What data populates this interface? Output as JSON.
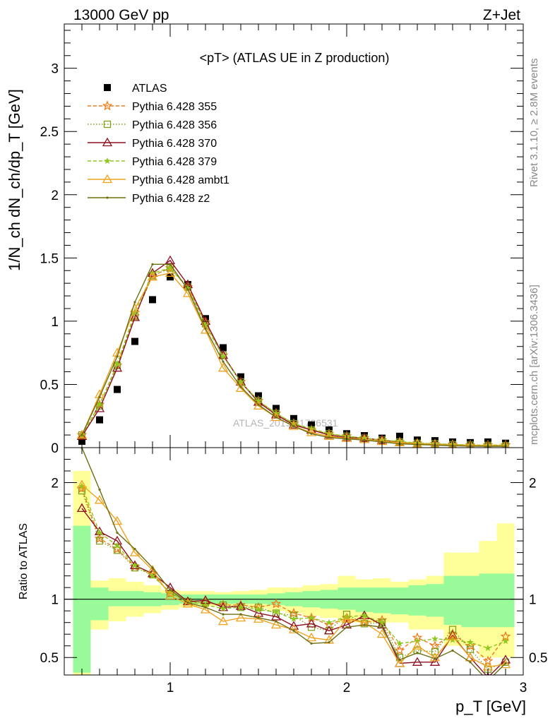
{
  "header": {
    "left": "13000 GeV pp",
    "right": "Z+Jet",
    "plot_title": "<pT> (ATLAS UE in Z production)",
    "side_top": "Rivet 3.1.10, ≥ 2.8M events",
    "side_bottom": "mcplots.cern.ch [arXiv:1306.3436]",
    "watermark": "ATLAS_2019_I1736531"
  },
  "colors": {
    "ATLAS": "#000000",
    "p355": "#f07c1c",
    "p356": "#7ea01c",
    "p370": "#8e1021",
    "p379": "#8ec71d",
    "ambt1": "#efa21c",
    "z2": "#6e6e12",
    "band_inner": "#99fa99",
    "band_outer": "#ffff99"
  },
  "chart_data": [
    {
      "type": "scatter",
      "name": "main",
      "ylabel": "1/N_ch dN_ch/dp_T [GeV]",
      "xlim": [
        0.4,
        3.0
      ],
      "ylim": [
        0,
        3.35
      ],
      "yticks": [
        0,
        0.5,
        1,
        1.5,
        2,
        2.5,
        3
      ],
      "ytick_labels": [
        "0",
        "0.5",
        "1",
        "1.5",
        "2",
        "2.5",
        "3"
      ],
      "legend_position": "top-left",
      "x": [
        0.5,
        0.6,
        0.7,
        0.8,
        0.9,
        1.0,
        1.1,
        1.2,
        1.3,
        1.4,
        1.5,
        1.6,
        1.7,
        1.8,
        1.9,
        2.0,
        2.1,
        2.2,
        2.3,
        2.4,
        2.5,
        2.6,
        2.7,
        2.8,
        2.9
      ],
      "series": [
        {
          "name": "ATLAS",
          "key": "ATLAS",
          "marker": "square-filled",
          "line": "none",
          "values": [
            0.05,
            0.22,
            0.46,
            0.84,
            1.17,
            1.35,
            1.29,
            1.02,
            0.79,
            0.56,
            0.41,
            0.31,
            0.23,
            0.18,
            0.14,
            0.11,
            0.095,
            0.075,
            0.09,
            0.06,
            0.055,
            0.045,
            0.04,
            0.045,
            0.035
          ]
        },
        {
          "name": "Pythia 6.428 355",
          "key": "p355",
          "marker": "star",
          "line": "dashed",
          "values": [
            0.1,
            0.34,
            0.65,
            1.04,
            1.36,
            1.42,
            1.27,
            0.99,
            0.73,
            0.52,
            0.37,
            0.27,
            0.19,
            0.14,
            0.11,
            0.09,
            0.075,
            0.06,
            0.045,
            0.035,
            0.03,
            0.025,
            0.02,
            0.02,
            0.02
          ]
        },
        {
          "name": "Pythia 6.428 356",
          "key": "p356",
          "marker": "square-open",
          "line": "dotted",
          "values": [
            0.1,
            0.33,
            0.65,
            1.04,
            1.36,
            1.42,
            1.27,
            0.98,
            0.73,
            0.52,
            0.37,
            0.27,
            0.19,
            0.14,
            0.11,
            0.09,
            0.075,
            0.06,
            0.045,
            0.034,
            0.03,
            0.024,
            0.02,
            0.018,
            0.016
          ]
        },
        {
          "name": "Pythia 6.428 370",
          "key": "p370",
          "marker": "triangle-open",
          "line": "solid",
          "values": [
            0.09,
            0.31,
            0.63,
            1.03,
            1.38,
            1.48,
            1.29,
            1.0,
            0.73,
            0.52,
            0.36,
            0.26,
            0.18,
            0.14,
            0.1,
            0.08,
            0.075,
            0.058,
            0.04,
            0.028,
            0.025,
            0.02,
            0.018,
            0.015,
            0.015
          ]
        },
        {
          "name": "Pythia 6.428 379",
          "key": "p379",
          "marker": "star-small",
          "line": "dashed",
          "values": [
            0.1,
            0.34,
            0.66,
            1.07,
            1.38,
            1.42,
            1.26,
            0.97,
            0.72,
            0.52,
            0.37,
            0.27,
            0.19,
            0.15,
            0.11,
            0.09,
            0.075,
            0.06,
            0.05,
            0.035,
            0.03,
            0.025,
            0.02,
            0.02,
            0.02
          ]
        },
        {
          "name": "Pythia 6.428 ambt1",
          "key": "ambt1",
          "marker": "triangle-open",
          "line": "solid",
          "values": [
            0.1,
            0.42,
            0.75,
            1.1,
            1.35,
            1.38,
            1.22,
            0.93,
            0.63,
            0.47,
            0.33,
            0.24,
            0.17,
            0.12,
            0.09,
            0.075,
            0.065,
            0.05,
            0.04,
            0.03,
            0.025,
            0.02,
            0.017,
            0.015,
            0.015
          ]
        },
        {
          "name": "Pythia 6.428 z2",
          "key": "z2",
          "marker": "dot",
          "line": "solid",
          "values": [
            0.1,
            0.4,
            0.72,
            1.15,
            1.45,
            1.45,
            1.25,
            0.94,
            0.68,
            0.48,
            0.34,
            0.24,
            0.17,
            0.11,
            0.08,
            0.07,
            0.06,
            0.045,
            0.03,
            0.025,
            0.02,
            0.015,
            0.012,
            0.01,
            0.01
          ]
        }
      ]
    },
    {
      "type": "line",
      "name": "ratio",
      "ylabel": "Ratio to ATLAS",
      "xlabel": "p_T [GeV]",
      "xlim": [
        0.4,
        3.0
      ],
      "ylim": [
        0.35,
        2.3
      ],
      "xticks": [
        1,
        2,
        3
      ],
      "xtick_labels": [
        "1",
        "2",
        "3"
      ],
      "yticks": [
        0.5,
        1,
        2
      ],
      "ytick_labels": [
        "0.5",
        "1",
        "2"
      ],
      "reference_line": 1,
      "x": [
        0.5,
        0.6,
        0.7,
        0.8,
        0.9,
        1.0,
        1.1,
        1.2,
        1.3,
        1.4,
        1.5,
        1.6,
        1.7,
        1.8,
        1.9,
        2.0,
        2.1,
        2.2,
        2.3,
        2.4,
        2.5,
        2.6,
        2.7,
        2.8,
        2.9
      ],
      "bands": {
        "edges": [
          0.45,
          0.55,
          0.65,
          0.75,
          0.85,
          0.95,
          1.05,
          1.15,
          1.25,
          1.35,
          1.45,
          1.55,
          1.65,
          1.75,
          1.85,
          1.95,
          2.05,
          2.15,
          2.25,
          2.35,
          2.45,
          2.55,
          2.65,
          2.75,
          2.85,
          2.95
        ],
        "inner_lo": [
          0.37,
          0.82,
          0.94,
          0.94,
          0.94,
          0.95,
          0.96,
          0.96,
          0.96,
          0.96,
          0.96,
          0.95,
          0.94,
          0.93,
          0.92,
          0.91,
          0.89,
          0.88,
          0.87,
          0.86,
          0.85,
          0.78,
          0.76,
          0.76,
          0.76
        ],
        "inner_hi": [
          1.63,
          1.1,
          1.07,
          1.07,
          1.06,
          1.05,
          1.04,
          1.04,
          1.04,
          1.04,
          1.04,
          1.05,
          1.06,
          1.07,
          1.08,
          1.1,
          1.1,
          1.1,
          1.1,
          1.12,
          1.13,
          1.2,
          1.2,
          1.22,
          1.22
        ],
        "outer_lo": [
          0.35,
          0.74,
          0.81,
          0.85,
          0.88,
          0.91,
          0.93,
          0.94,
          0.94,
          0.94,
          0.92,
          0.9,
          0.88,
          0.86,
          0.84,
          0.8,
          0.8,
          0.8,
          0.8,
          0.74,
          0.74,
          0.6,
          0.6,
          0.5,
          0.5
        ],
        "outer_hi": [
          2.1,
          1.16,
          1.18,
          1.15,
          1.12,
          1.08,
          1.07,
          1.07,
          1.06,
          1.07,
          1.08,
          1.1,
          1.1,
          1.12,
          1.13,
          1.2,
          1.17,
          1.18,
          1.15,
          1.17,
          1.2,
          1.4,
          1.4,
          1.5,
          1.65
        ]
      },
      "series": [
        {
          "name": "Pythia 6.428 355",
          "key": "p355",
          "marker": "star",
          "line": "dashed",
          "values": [
            1.95,
            1.52,
            1.43,
            1.28,
            1.22,
            1.05,
            0.98,
            0.97,
            0.95,
            0.95,
            0.93,
            0.96,
            0.88,
            0.84,
            0.78,
            0.84,
            0.8,
            0.82,
            0.56,
            0.67,
            0.6,
            0.7,
            0.6,
            0.47,
            0.68
          ]
        },
        {
          "name": "Pythia 6.428 356",
          "key": "p356",
          "marker": "square-open",
          "line": "dotted",
          "values": [
            1.93,
            1.5,
            1.42,
            1.27,
            1.21,
            1.05,
            0.98,
            0.97,
            0.95,
            0.93,
            0.93,
            0.88,
            0.86,
            0.76,
            0.73,
            0.87,
            0.79,
            0.8,
            0.5,
            0.56,
            0.55,
            0.74,
            0.57,
            0.4,
            0.46
          ]
        },
        {
          "name": "Pythia 6.428 370",
          "key": "p370",
          "marker": "triangle-open",
          "line": "solid",
          "values": [
            1.78,
            1.58,
            1.5,
            1.29,
            1.22,
            1.1,
            0.98,
            0.99,
            0.93,
            0.94,
            0.88,
            0.85,
            0.77,
            0.79,
            0.73,
            0.78,
            0.86,
            0.78,
            0.45,
            0.46,
            0.46,
            0.69,
            0.5,
            0.33,
            0.48
          ]
        },
        {
          "name": "Pythia 6.428 379",
          "key": "p379",
          "marker": "star-small",
          "line": "dashed",
          "values": [
            1.97,
            1.57,
            1.46,
            1.29,
            1.2,
            1.06,
            0.98,
            0.95,
            0.92,
            0.93,
            0.91,
            0.89,
            0.83,
            0.84,
            0.8,
            0.85,
            0.86,
            0.8,
            0.62,
            0.64,
            0.66,
            0.65,
            0.63,
            0.58,
            0.64
          ]
        },
        {
          "name": "Pythia 6.428 ambt1",
          "key": "ambt1",
          "marker": "triangle-open",
          "line": "solid",
          "values": [
            1.98,
            1.85,
            1.67,
            1.4,
            1.25,
            1.03,
            0.96,
            0.91,
            0.81,
            0.84,
            0.83,
            0.78,
            0.74,
            0.67,
            0.65,
            0.83,
            0.8,
            0.7,
            0.45,
            0.6,
            0.5,
            0.68,
            0.5,
            0.42,
            0.44
          ]
        },
        {
          "name": "Pythia 6.428 z2",
          "key": "z2",
          "marker": "dot",
          "line": "solid",
          "values": [
            2.3,
            1.94,
            1.57,
            1.43,
            1.27,
            1.08,
            0.97,
            0.93,
            0.87,
            0.87,
            0.84,
            0.81,
            0.73,
            0.62,
            0.63,
            0.76,
            0.78,
            0.76,
            0.48,
            0.54,
            0.49,
            0.56,
            0.46,
            0.3,
            0.45
          ]
        }
      ]
    }
  ]
}
